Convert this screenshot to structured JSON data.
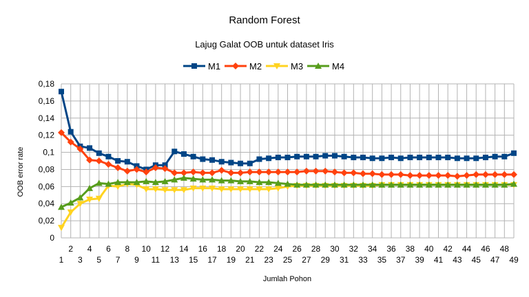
{
  "chart_data": {
    "type": "line",
    "title": "Random Forest",
    "subtitle": "Lajug Galat OOB untuk dataset Iris",
    "xlabel": "Jumlah Pohon",
    "ylabel": "OOB error rate",
    "ylim": [
      0,
      0.18
    ],
    "y_ticks": [
      "0",
      "0,02",
      "0,04",
      "0,06",
      "0,08",
      "0,1",
      "0,12",
      "0,14",
      "0,16",
      "0,18"
    ],
    "x": [
      1,
      2,
      3,
      4,
      5,
      6,
      7,
      8,
      9,
      10,
      11,
      12,
      13,
      14,
      15,
      16,
      17,
      18,
      19,
      20,
      21,
      22,
      23,
      24,
      25,
      26,
      27,
      28,
      29,
      30,
      31,
      32,
      33,
      34,
      35,
      36,
      37,
      38,
      39,
      40,
      41,
      42,
      43,
      44,
      45,
      46,
      47,
      48,
      49
    ],
    "grid": true,
    "legend_position": "top",
    "series": [
      {
        "name": "M1",
        "color": "#004586",
        "marker": "square",
        "values": [
          0.171,
          0.124,
          0.107,
          0.105,
          0.099,
          0.095,
          0.09,
          0.089,
          0.084,
          0.08,
          0.085,
          0.085,
          0.101,
          0.098,
          0.095,
          0.092,
          0.091,
          0.089,
          0.088,
          0.087,
          0.087,
          0.092,
          0.093,
          0.094,
          0.094,
          0.095,
          0.095,
          0.095,
          0.096,
          0.096,
          0.095,
          0.094,
          0.094,
          0.093,
          0.093,
          0.094,
          0.093,
          0.094,
          0.094,
          0.094,
          0.094,
          0.094,
          0.093,
          0.093,
          0.093,
          0.094,
          0.095,
          0.095,
          0.099
        ]
      },
      {
        "name": "M2",
        "color": "#ff420e",
        "marker": "diamond",
        "values": [
          0.123,
          0.112,
          0.104,
          0.091,
          0.09,
          0.086,
          0.082,
          0.078,
          0.08,
          0.077,
          0.082,
          0.081,
          0.076,
          0.076,
          0.077,
          0.076,
          0.076,
          0.079,
          0.076,
          0.076,
          0.077,
          0.077,
          0.077,
          0.077,
          0.077,
          0.077,
          0.078,
          0.078,
          0.078,
          0.077,
          0.076,
          0.076,
          0.075,
          0.075,
          0.074,
          0.074,
          0.074,
          0.073,
          0.073,
          0.073,
          0.073,
          0.073,
          0.072,
          0.073,
          0.074,
          0.074,
          0.074,
          0.074,
          0.074
        ]
      },
      {
        "name": "M3",
        "color": "#ffd320",
        "marker": "triangle-down",
        "values": [
          0.012,
          0.03,
          0.04,
          0.045,
          0.046,
          0.061,
          0.06,
          0.063,
          0.062,
          0.057,
          0.057,
          0.056,
          0.056,
          0.056,
          0.058,
          0.058,
          0.058,
          0.057,
          0.057,
          0.057,
          0.057,
          0.057,
          0.057,
          0.058,
          0.06,
          0.061,
          0.061,
          0.061,
          0.061,
          0.061,
          0.061,
          0.061,
          0.061,
          0.061,
          0.062,
          0.062,
          0.062,
          0.062,
          0.062,
          0.062,
          0.062,
          0.062,
          0.062,
          0.062,
          0.062,
          0.062,
          0.062,
          0.062,
          0.062
        ]
      },
      {
        "name": "M4",
        "color": "#579d1c",
        "marker": "triangle-up",
        "values": [
          0.036,
          0.041,
          0.047,
          0.058,
          0.064,
          0.063,
          0.065,
          0.065,
          0.065,
          0.066,
          0.065,
          0.066,
          0.068,
          0.07,
          0.069,
          0.068,
          0.068,
          0.067,
          0.067,
          0.066,
          0.066,
          0.065,
          0.065,
          0.064,
          0.063,
          0.062,
          0.062,
          0.062,
          0.062,
          0.062,
          0.062,
          0.062,
          0.062,
          0.062,
          0.062,
          0.062,
          0.062,
          0.062,
          0.062,
          0.062,
          0.062,
          0.062,
          0.062,
          0.062,
          0.062,
          0.062,
          0.062,
          0.062,
          0.063
        ]
      }
    ]
  }
}
